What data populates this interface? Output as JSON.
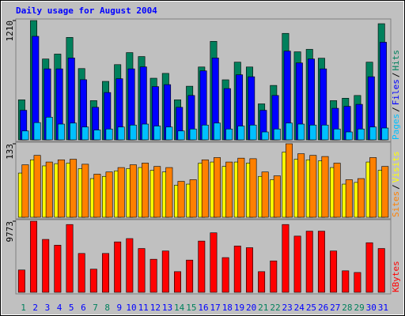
{
  "chart_data": [
    {
      "type": "bar",
      "title": "Daily usage for August 2004",
      "ylim": [
        0,
        1210
      ],
      "yticks": [
        1210
      ],
      "legend_separator": "/",
      "series": [
        {
          "name": "Hits",
          "color": "#00805c",
          "values": [
            406,
            1210,
            820,
            870,
            1039,
            723,
            398,
            593,
            763,
            885,
            845,
            625,
            674,
            406,
            544,
            739,
            999,
            609,
            788,
            739,
            365,
            552,
            1080,
            893,
            918,
            828,
            398,
            422,
            450,
            788,
            1178
          ]
        },
        {
          "name": "Files",
          "color": "#0000ff",
          "values": [
            300,
            1050,
            720,
            720,
            830,
            610,
            330,
            480,
            620,
            720,
            740,
            540,
            560,
            330,
            450,
            700,
            830,
            520,
            660,
            640,
            300,
            450,
            900,
            780,
            820,
            720,
            320,
            340,
            360,
            640,
            990
          ]
        },
        {
          "name": "Pages",
          "color": "#00c0ff",
          "values": [
            90,
            175,
            230,
            160,
            170,
            130,
            100,
            110,
            130,
            150,
            160,
            140,
            130,
            90,
            110,
            150,
            170,
            110,
            140,
            150,
            80,
            110,
            170,
            160,
            150,
            150,
            110,
            80,
            110,
            130,
            120
          ]
        }
      ]
    },
    {
      "type": "bar",
      "ylim": [
        0,
        133
      ],
      "yticks": [
        133
      ],
      "legend_separator": "/",
      "series": [
        {
          "name": "Visits",
          "color": "#ffff00",
          "values": [
            80,
            104,
            93,
            97,
            98,
            88,
            70,
            74,
            84,
            88,
            90,
            85,
            82,
            58,
            60,
            98,
            100,
            92,
            100,
            98,
            74,
            68,
            118,
            105,
            104,
            102,
            90,
            60,
            63,
            100,
            85
          ]
        },
        {
          "name": "Sites",
          "color": "#ff8000",
          "values": [
            95,
            112,
            100,
            104,
            105,
            96,
            78,
            82,
            90,
            95,
            98,
            92,
            90,
            65,
            68,
            104,
            108,
            100,
            107,
            106,
            82,
            75,
            133,
            115,
            112,
            110,
            98,
            68,
            70,
            108,
            92
          ]
        }
      ]
    },
    {
      "type": "bar",
      "ylim": [
        0,
        9773
      ],
      "yticks": [
        9773
      ],
      "categories": [
        "1",
        "2",
        "3",
        "4",
        "5",
        "6",
        "7",
        "8",
        "9",
        "10",
        "11",
        "12",
        "13",
        "14",
        "15",
        "16",
        "17",
        "18",
        "19",
        "20",
        "21",
        "22",
        "23",
        "24",
        "25",
        "26",
        "27",
        "28",
        "29",
        "30",
        "31"
      ],
      "category_colors": [
        "#00805c",
        "#0000ff",
        "#0000ff",
        "#0000ff",
        "#0000ff",
        "#0000ff",
        "#00805c",
        "#00805c",
        "#0000ff",
        "#0000ff",
        "#0000ff",
        "#0000ff",
        "#0000ff",
        "#00805c",
        "#00805c",
        "#0000ff",
        "#0000ff",
        "#0000ff",
        "#0000ff",
        "#0000ff",
        "#00805c",
        "#00805c",
        "#0000ff",
        "#0000ff",
        "#0000ff",
        "#0000ff",
        "#0000ff",
        "#00805c",
        "#00805c",
        "#0000ff",
        "#0000ff"
      ],
      "series": [
        {
          "name": "KBytes",
          "color": "#ff0000",
          "values": [
            3068,
            9773,
            7271,
            6476,
            9318,
            5340,
            3181,
            5340,
            6930,
            7385,
            6021,
            4544,
            5680,
            2840,
            4431,
            7044,
            8180,
            4771,
            6362,
            6135,
            2840,
            4317,
            9318,
            7725,
            8407,
            8407,
            5680,
            2953,
            2726,
            6816,
            6021
          ]
        }
      ]
    }
  ]
}
